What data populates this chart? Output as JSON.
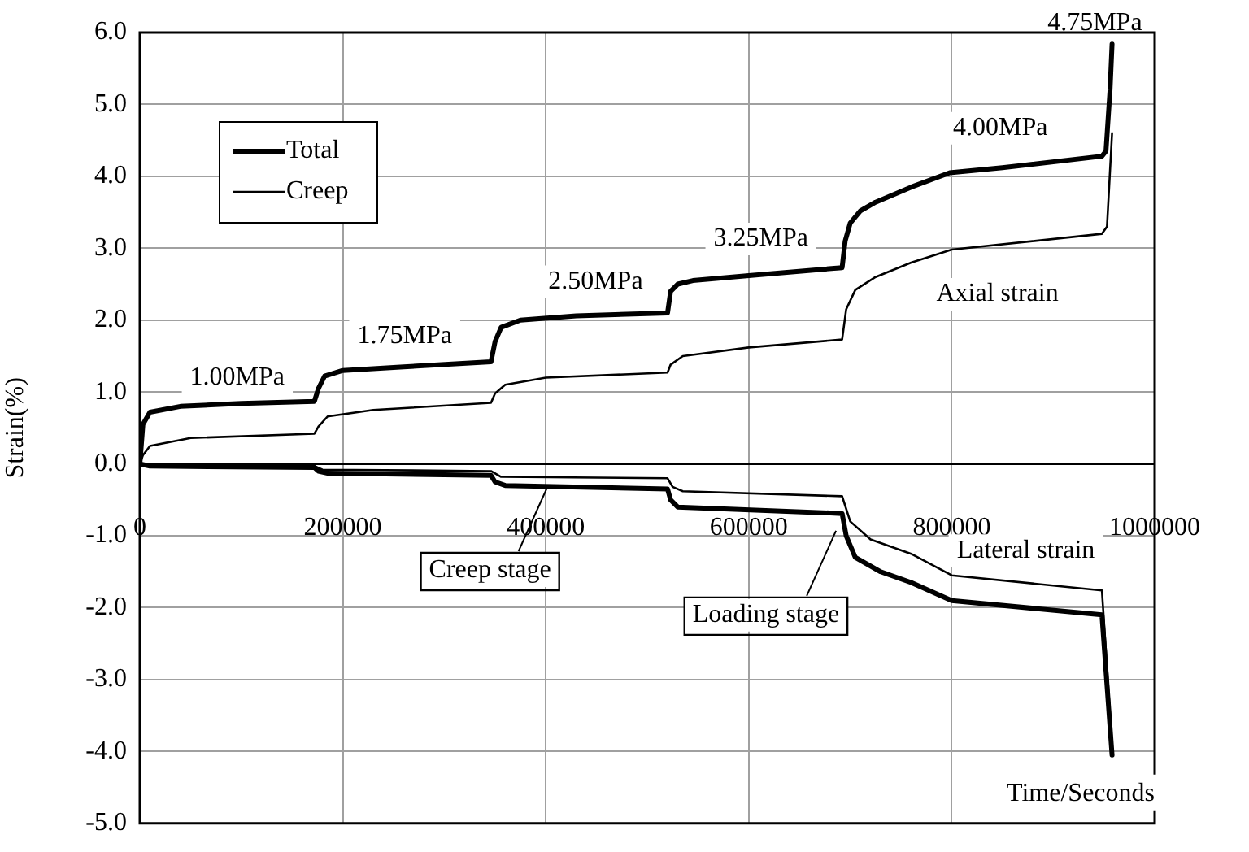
{
  "chart_data": {
    "type": "line",
    "xlabel": "Time/Seconds",
    "ylabel": "Strain(%)",
    "xlim": [
      0,
      1000000
    ],
    "xticks": [
      0,
      200000,
      400000,
      600000,
      800000,
      1000000
    ],
    "ylim": [
      -5,
      6
    ],
    "yticks": [
      {
        "value": -5,
        "label": "-5.0"
      },
      {
        "value": -4,
        "label": "-4.0"
      },
      {
        "value": -3,
        "label": "-3.0"
      },
      {
        "value": -2,
        "label": "-2.0"
      },
      {
        "value": -1,
        "label": "-1.0"
      },
      {
        "value": 0,
        "label": "0.0"
      },
      {
        "value": 1,
        "label": "1.0"
      },
      {
        "value": 2,
        "label": "2.0"
      },
      {
        "value": 3,
        "label": "3.0"
      },
      {
        "value": 4,
        "label": "4.0"
      },
      {
        "value": 5,
        "label": "5.0"
      },
      {
        "value": 6,
        "label": "6.0"
      }
    ],
    "grid": true,
    "legend": "top left",
    "marker": "none",
    "line_style": "solid",
    "series": [
      {
        "name": "Total",
        "color": "#000000",
        "x": [
          0,
          3000,
          10000,
          40000,
          100000,
          172000,
          176000,
          182000,
          200000,
          260000,
          346000,
          350000,
          356000,
          375000,
          430000,
          520000,
          523000,
          530000,
          545000,
          600000,
          692000,
          695000,
          700000,
          710000,
          725000,
          760000,
          798000,
          850000,
          948000,
          952000,
          956000,
          958000
        ],
        "values": [
          0,
          0.55,
          0.72,
          0.8,
          0.84,
          0.87,
          1.05,
          1.22,
          1.3,
          1.35,
          1.42,
          1.7,
          1.9,
          2.0,
          2.06,
          2.1,
          2.4,
          2.5,
          2.55,
          2.62,
          2.73,
          3.1,
          3.35,
          3.52,
          3.64,
          3.85,
          4.05,
          4.12,
          4.28,
          4.35,
          5.2,
          5.84
        ]
      },
      {
        "name": "Creep",
        "color": "#000000",
        "x": [
          0,
          3000,
          10000,
          50000,
          172000,
          176000,
          185000,
          230000,
          346000,
          350000,
          360000,
          400000,
          520000,
          523000,
          535000,
          600000,
          692000,
          696000,
          705000,
          725000,
          760000,
          800000,
          948000,
          953000,
          958000
        ],
        "values": [
          0,
          0.12,
          0.25,
          0.36,
          0.42,
          0.52,
          0.66,
          0.75,
          0.85,
          0.98,
          1.1,
          1.2,
          1.27,
          1.38,
          1.5,
          1.62,
          1.73,
          2.15,
          2.42,
          2.6,
          2.8,
          2.98,
          3.2,
          3.3,
          4.6
        ]
      },
      {
        "color": "#000000",
        "x": [
          0,
          10000,
          172000,
          176000,
          185000,
          346000,
          350000,
          360000,
          520000,
          523000,
          530000,
          692000,
          696000,
          705000,
          730000,
          760000,
          800000,
          948000,
          958000
        ],
        "values": [
          0,
          -0.03,
          -0.05,
          -0.1,
          -0.13,
          -0.16,
          -0.25,
          -0.3,
          -0.35,
          -0.5,
          -0.6,
          -0.69,
          -1.0,
          -1.3,
          -1.5,
          -1.65,
          -1.9,
          -2.1,
          -4.05
        ]
      },
      {
        "color": "#000000",
        "x": [
          0,
          10000,
          172000,
          180000,
          346000,
          356000,
          520000,
          525000,
          535000,
          692000,
          700000,
          720000,
          760000,
          800000,
          948000,
          958000
        ],
        "values": [
          0,
          -0.02,
          -0.03,
          -0.08,
          -0.1,
          -0.18,
          -0.2,
          -0.32,
          -0.38,
          -0.45,
          -0.8,
          -1.05,
          -1.25,
          -1.55,
          -1.76,
          -3.9
        ]
      }
    ],
    "annotations": [
      "1.00MPa",
      "1.75MPa",
      "2.50MPa",
      "3.25MPa",
      "4.00MPa",
      "4.75MPa",
      "Axial strain",
      "Lateral strain",
      {
        "text": "Creep stage",
        "x": 402000,
        "y": -0.31
      },
      {
        "text": "Loading stage",
        "x": 686000,
        "y": -0.93
      }
    ]
  }
}
